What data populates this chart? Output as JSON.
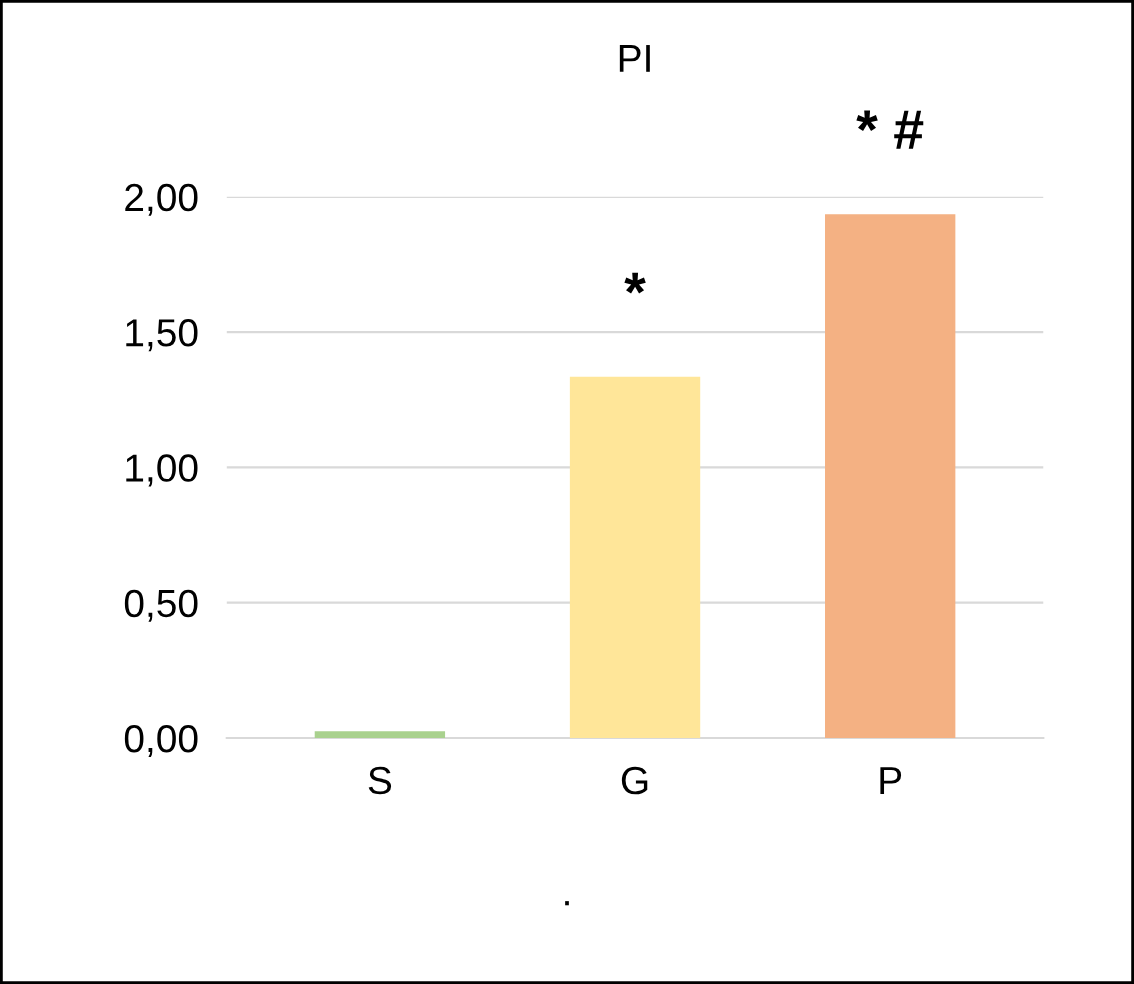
{
  "chart_data": {
    "type": "bar",
    "title": "PI",
    "categories": [
      "S",
      "G",
      "P"
    ],
    "values": [
      0.02,
      1.33,
      1.93
    ],
    "colors": [
      "#a9d18e",
      "#ffe699",
      "#f4b183"
    ],
    "ylim": [
      0,
      2
    ],
    "yticks": [
      {
        "value": 0,
        "label": "0,00"
      },
      {
        "value": 0.5,
        "label": "0,50"
      },
      {
        "value": 1,
        "label": "1,00"
      },
      {
        "value": 1.5,
        "label": "1,50"
      },
      {
        "value": 2,
        "label": "2,00"
      }
    ],
    "grid": "y",
    "annotations": [
      "*",
      "* #",
      "."
    ]
  }
}
